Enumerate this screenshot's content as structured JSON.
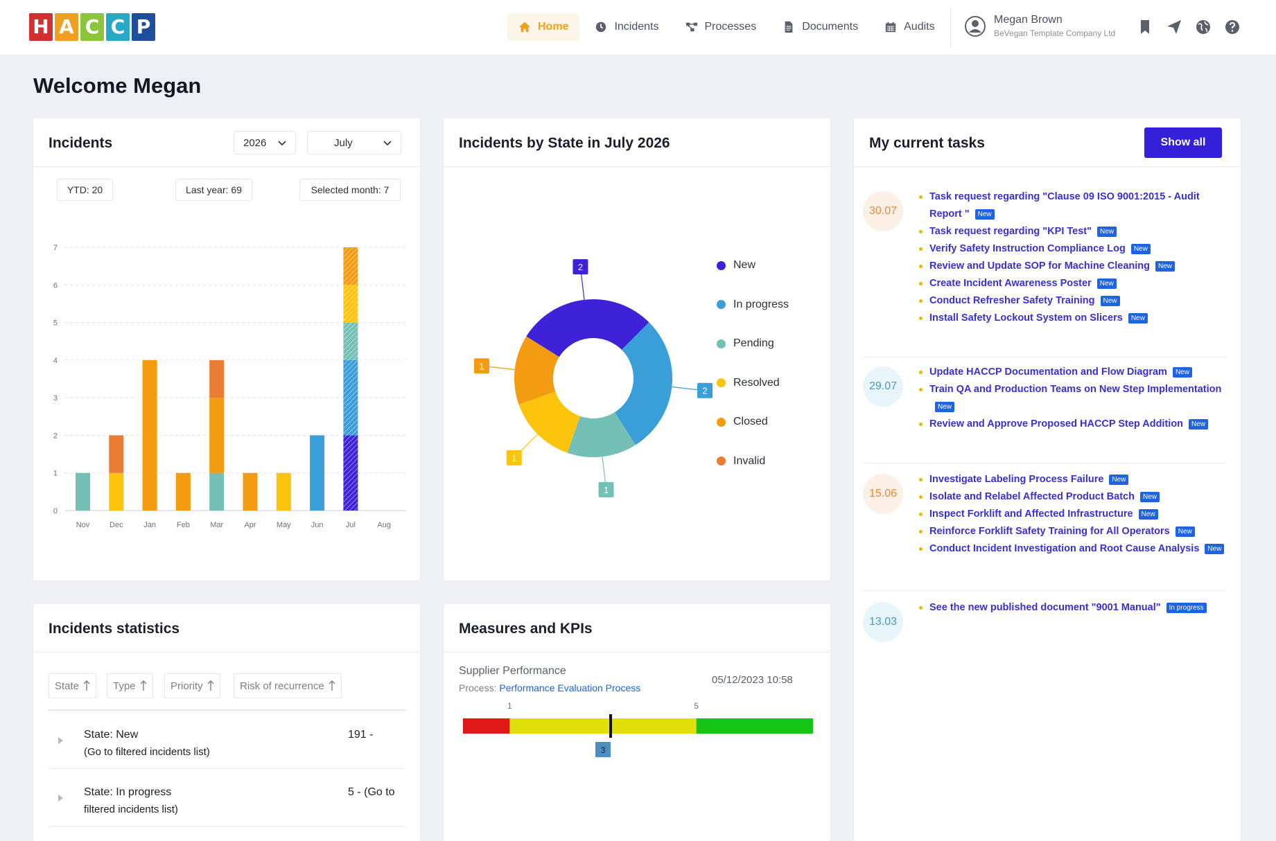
{
  "logo": {
    "letters": [
      {
        "ch": "H",
        "color": "#d03030"
      },
      {
        "ch": "A",
        "color": "#f0a020"
      },
      {
        "ch": "C",
        "color": "#8cc43c"
      },
      {
        "ch": "C",
        "color": "#2aa8c8"
      },
      {
        "ch": "P",
        "color": "#1e4e9c"
      }
    ]
  },
  "nav": {
    "home": "Home",
    "incidents": "Incidents",
    "processes": "Processes",
    "documents": "Documents",
    "audits": "Audits"
  },
  "user": {
    "name": "Megan Brown",
    "company": "BeVegan Template Company Ltd"
  },
  "welcome": "Welcome Megan",
  "incidents_card": {
    "title": "Incidents",
    "year": "2026",
    "month": "July",
    "ytd": "YTD: 20",
    "last_year": "Last year: 69",
    "selected_month": "Selected month: 7"
  },
  "state_card": {
    "title": "Incidents by State in July 2026"
  },
  "tasks_card": {
    "title": "My current tasks",
    "show_all": "Show all"
  },
  "stats_card": {
    "title": "Incidents statistics",
    "sort": [
      "State",
      "Type",
      "Priority",
      "Risk of recurrence"
    ],
    "rows": [
      {
        "state": "State: New",
        "link": "(Go to filtered incidents list)",
        "value": "191 -"
      },
      {
        "state": "State: In progress",
        "link": "filtered incidents list)",
        "value": "5 - (Go to"
      }
    ]
  },
  "kpi_card": {
    "title": "Measures and KPIs",
    "name": "Supplier Performance",
    "process_label": "Process:",
    "process_link": "Performance Evaluation Process",
    "timestamp": "05/12/2023 10:58",
    "threshold_low": "1",
    "threshold_high": "5",
    "value": 3,
    "value_label": "3",
    "scale_min": 0,
    "scale_max": 7.5
  },
  "tasks": [
    {
      "date": "30.07",
      "date_color": "#e88a40",
      "date_bg": "#fdf0e6",
      "items": [
        {
          "text": "Task request regarding \"Clause 09 ISO 9001:2015 - Audit Report \"",
          "badge": "New"
        },
        {
          "text": "Task request regarding \"KPI Test\"",
          "badge": "New"
        },
        {
          "text": "Verify Safety Instruction Compliance Log",
          "badge": "New"
        },
        {
          "text": "Review and Update SOP for Machine Cleaning",
          "badge": "New"
        },
        {
          "text": "Create Incident Awareness Poster",
          "badge": "New"
        },
        {
          "text": "Conduct Refresher Safety Training",
          "badge": "New"
        },
        {
          "text": "Install Safety Lockout System on Slicers",
          "badge": "New"
        }
      ]
    },
    {
      "date": "29.07",
      "date_color": "#4a9ab8",
      "date_bg": "#e8f5fb",
      "items": [
        {
          "text": "Update HACCP Documentation and Flow Diagram",
          "badge": "New"
        },
        {
          "text": "Train QA and Production Teams on New Step Implementation",
          "badge": "New"
        },
        {
          "text": "Review and Approve Proposed HACCP Step Addition",
          "badge": "New"
        }
      ]
    },
    {
      "date": "15.06",
      "date_color": "#e88a40",
      "date_bg": "#fdf0e6",
      "items": [
        {
          "text": "Investigate Labeling Process Failure",
          "badge": "New"
        },
        {
          "text": "Isolate and Relabel Affected Product Batch",
          "badge": "New"
        },
        {
          "text": "Inspect Forklift and Affected Infrastructure",
          "badge": "New"
        },
        {
          "text": "Reinforce Forklift Safety Training for All Operators",
          "badge": "New"
        },
        {
          "text": "Conduct Incident Investigation and Root Cause Analysis",
          "badge": "New"
        }
      ]
    },
    {
      "date": "13.03",
      "date_color": "#4a9ab8",
      "date_bg": "#e8f5fb",
      "items": [
        {
          "text": "See the new published document \"9001 Manual\"",
          "badge": "In progress"
        }
      ]
    }
  ],
  "chart_data": [
    {
      "type": "bar",
      "stacked": true,
      "categories": [
        "Nov",
        "Dec",
        "Jan",
        "Feb",
        "Mar",
        "Apr",
        "May",
        "Jun",
        "Jul",
        "Aug"
      ],
      "series": [
        {
          "name": "New",
          "color": "#3d22d8",
          "values": [
            0,
            0,
            0,
            0,
            0,
            0,
            0,
            0,
            2,
            0
          ]
        },
        {
          "name": "In progress",
          "color": "#3a9ed8",
          "values": [
            0,
            0,
            0,
            0,
            0,
            0,
            0,
            2,
            2,
            0
          ]
        },
        {
          "name": "Pending",
          "color": "#74c0b6",
          "values": [
            1,
            0,
            0,
            0,
            1,
            0,
            0,
            0,
            1,
            0
          ]
        },
        {
          "name": "Resolved",
          "color": "#fcc40c",
          "values": [
            0,
            1,
            0,
            0,
            0,
            0,
            1,
            0,
            1,
            0
          ]
        },
        {
          "name": "Closed",
          "color": "#f39c12",
          "values": [
            0,
            0,
            4,
            1,
            2,
            1,
            0,
            0,
            1,
            0
          ]
        },
        {
          "name": "Invalid",
          "color": "#ea7c34",
          "values": [
            0,
            1,
            0,
            0,
            1,
            0,
            0,
            0,
            0,
            0
          ]
        }
      ],
      "highlight_category": "Jul",
      "ylim": [
        0,
        7
      ],
      "yticks": [
        0,
        1,
        2,
        3,
        4,
        5,
        6,
        7
      ],
      "grid": true
    },
    {
      "type": "pie",
      "donut": true,
      "slices": [
        {
          "name": "New",
          "value": 2,
          "color": "#3d22d8"
        },
        {
          "name": "In progress",
          "value": 2,
          "color": "#3a9ed8"
        },
        {
          "name": "Pending",
          "value": 1,
          "color": "#74c0b6"
        },
        {
          "name": "Resolved",
          "value": 1,
          "color": "#fcc40c"
        },
        {
          "name": "Closed",
          "value": 1,
          "color": "#f39c12"
        }
      ],
      "legend": [
        {
          "name": "New",
          "color": "#3d22d8"
        },
        {
          "name": "In progress",
          "color": "#3a9ed8"
        },
        {
          "name": "Pending",
          "color": "#74c0b6"
        },
        {
          "name": "Resolved",
          "color": "#fcc40c"
        },
        {
          "name": "Closed",
          "color": "#f39c12"
        },
        {
          "name": "Invalid",
          "color": "#ea7c34"
        }
      ],
      "legend_position": "right"
    }
  ]
}
